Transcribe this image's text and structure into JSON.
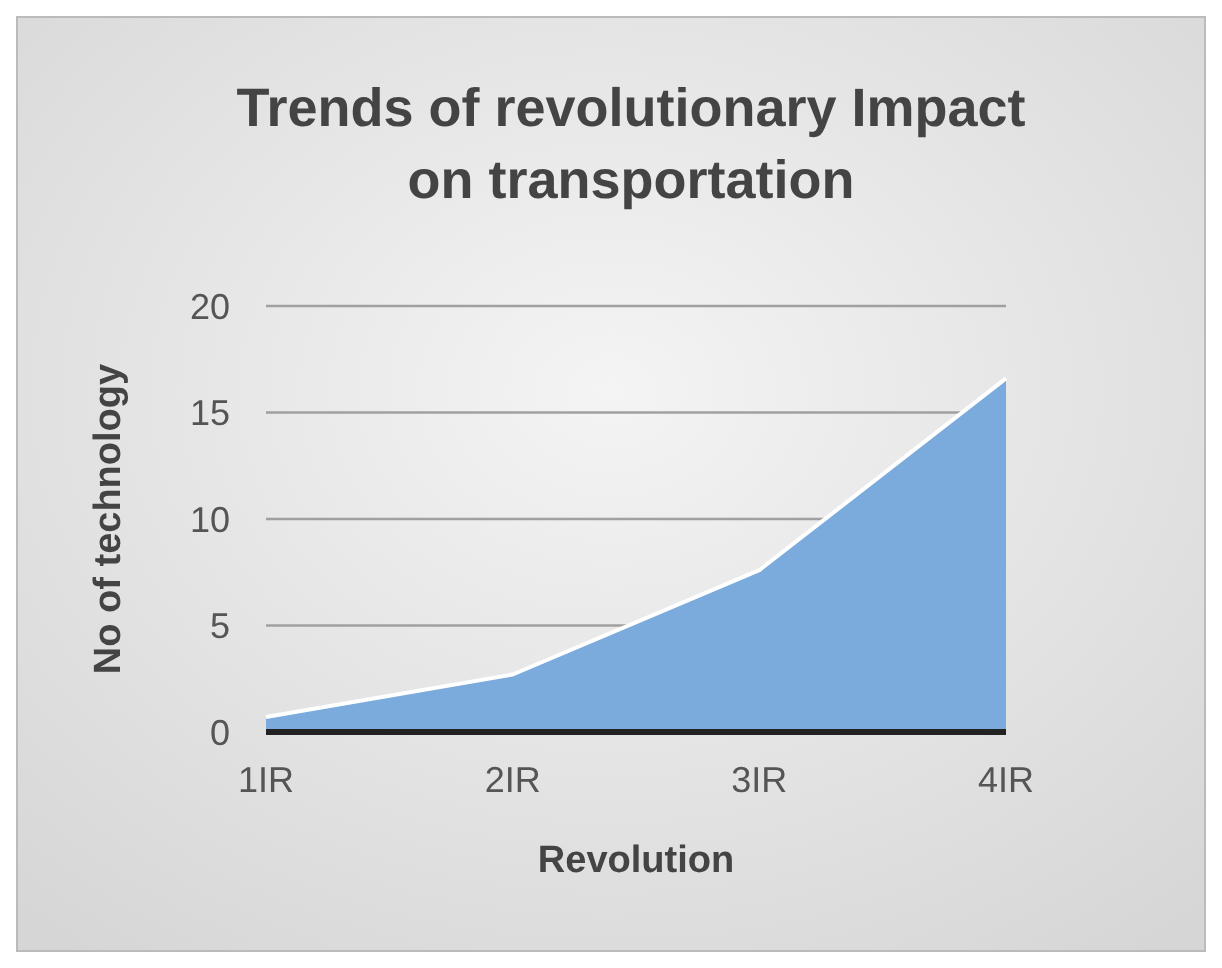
{
  "chart_data": {
    "type": "area",
    "title": "Trends of revolutionary Impact on transportation",
    "xlabel": "Revolution",
    "ylabel": "No of technology",
    "categories": [
      "1IR",
      "2IR",
      "3IR",
      "4IR"
    ],
    "series": [
      {
        "color": "#7aabdc",
        "values": [
          0.7,
          2.7,
          7.6,
          16.6
        ]
      }
    ],
    "ylim": [
      0,
      20
    ],
    "yticks": [
      0,
      5,
      10,
      15,
      20
    ],
    "grid": "y"
  }
}
